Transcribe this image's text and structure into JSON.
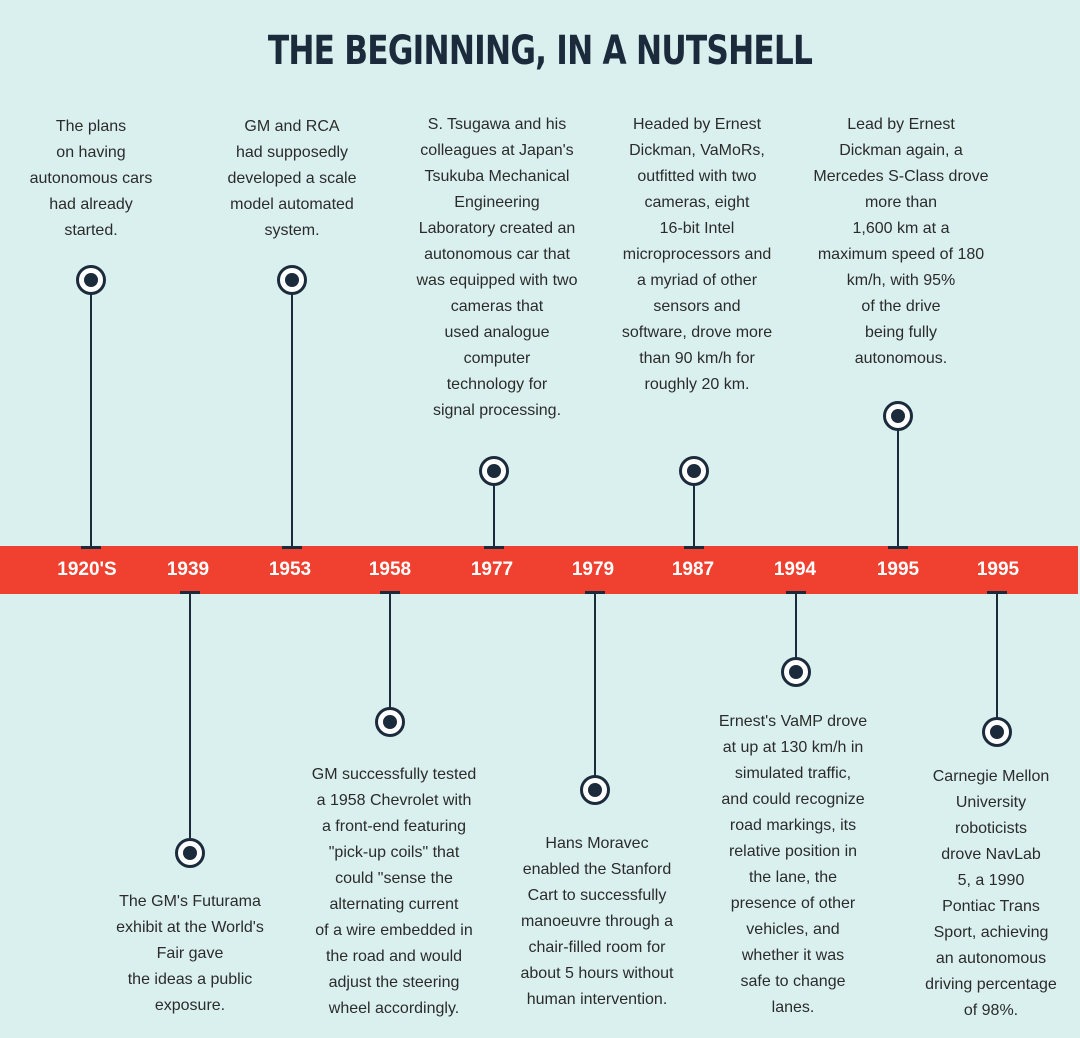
{
  "title": "THE BEGINNING, IN A NUTSHELL",
  "colors": {
    "background": "#daf0ef",
    "band": "#f0402f",
    "ink": "#1b2b3c",
    "text": "#2b2b2b"
  },
  "events": [
    {
      "year": "1920'S",
      "text": "The plans\non having\nautonomous cars\nhad already\nstarted."
    },
    {
      "year": "1939",
      "text": "The GM's Futurama\nexhibit at the World's\nFair gave\nthe ideas a public\nexposure."
    },
    {
      "year": "1953",
      "text": "GM and RCA\nhad supposedly\ndeveloped a scale\nmodel automated\nsystem."
    },
    {
      "year": "1958",
      "text": "GM successfully tested\na 1958 Chevrolet with\na front-end featuring\n\"pick-up coils\" that\ncould \"sense the\nalternating current\nof a wire embedded in\nthe road and would\nadjust the steering\nwheel accordingly."
    },
    {
      "year": "1977",
      "text": "S. Tsugawa and his\ncolleagues at Japan's\nTsukuba Mechanical\nEngineering\nLaboratory created an\nautonomous car that\nwas equipped with two\ncameras that\nused analogue\ncomputer\ntechnology for\nsignal processing."
    },
    {
      "year": "1979",
      "text": "Hans Moravec\nenabled the Stanford\nCart to successfully\nmanoeuvre through a\nchair-filled room for\nabout 5 hours without\nhuman intervention."
    },
    {
      "year": "1987",
      "text": "Headed by Ernest\nDickman, VaMoRs,\noutfitted with two\ncameras, eight\n16-bit Intel\nmicroprocessors and\na myriad of other\nsensors and\nsoftware, drove more\nthan 90 km/h for\nroughly 20 km."
    },
    {
      "year": "1994",
      "text": "Ernest's VaMP drove\nat up at 130 km/h in\nsimulated traffic,\nand could recognize\nroad markings, its\nrelative position in\nthe lane, the\npresence of other\nvehicles, and\nwhether it was\nsafe to change\nlanes."
    },
    {
      "year": "1995",
      "text": "Lead by Ernest\nDickman again, a\nMercedes S-Class drove\nmore than\n1,600 km at a\nmaximum speed of 180\nkm/h, with 95%\nof the drive\nbeing fully\nautonomous."
    },
    {
      "year": "1995",
      "text": "Carnegie Mellon\nUniversity\nroboticists\ndrove NavLab\n5, a 1990\nPontiac Trans\nSport, achieving\nan autonomous\ndriving percentage\nof 98%."
    }
  ]
}
